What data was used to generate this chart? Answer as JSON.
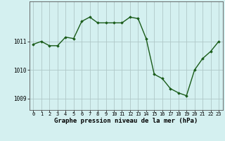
{
  "x": [
    0,
    1,
    2,
    3,
    4,
    5,
    6,
    7,
    8,
    9,
    10,
    11,
    12,
    13,
    14,
    15,
    16,
    17,
    18,
    19,
    20,
    21,
    22,
    23
  ],
  "y": [
    1010.9,
    1011.0,
    1010.85,
    1010.85,
    1011.15,
    1011.1,
    1011.7,
    1011.85,
    1011.65,
    1011.65,
    1011.65,
    1011.65,
    1011.85,
    1011.8,
    1011.1,
    1009.85,
    1009.7,
    1009.35,
    1009.2,
    1009.1,
    1010.0,
    1010.4,
    1010.65,
    1011.0
  ],
  "line_color": "#1a5c1a",
  "marker": "D",
  "markersize": 1.8,
  "linewidth": 1.0,
  "bg_color": "#d4f0f0",
  "grid_color": "#b0c8c8",
  "xlabel": "Graphe pression niveau de la mer (hPa)",
  "xlabel_fontsize": 6.5,
  "yticks": [
    1009,
    1010,
    1011
  ],
  "ylim": [
    1008.6,
    1012.4
  ],
  "xlim": [
    -0.5,
    23.5
  ],
  "xticks": [
    0,
    1,
    2,
    3,
    4,
    5,
    6,
    7,
    8,
    9,
    10,
    11,
    12,
    13,
    14,
    15,
    16,
    17,
    18,
    19,
    20,
    21,
    22,
    23
  ],
  "tick_fontsize": 5.0,
  "ytick_fontsize": 5.5
}
